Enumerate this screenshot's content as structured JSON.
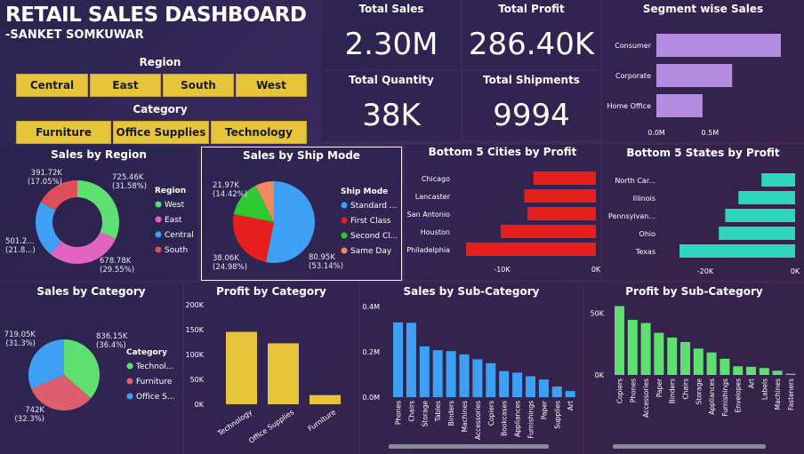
{
  "header": {
    "title": "RETAIL SALES DASHBOARD",
    "subtitle": "-SANKET SOMKUWAR"
  },
  "filters": {
    "region_label": "Region",
    "region_options": [
      "Central",
      "East",
      "South",
      "West"
    ],
    "category_label": "Category",
    "category_options": [
      "Furniture",
      "Office Supplies",
      "Technology"
    ]
  },
  "kpis": {
    "total_sales": {
      "label": "Total Sales",
      "value": "2.30M"
    },
    "total_profit": {
      "label": "Total Profit",
      "value": "286.40K"
    },
    "total_quantity": {
      "label": "Total Quantity",
      "value": "38K"
    },
    "total_shipments": {
      "label": "Total Shipments",
      "value": "9994"
    }
  },
  "colors": {
    "accent_yellow": "#e6c53a",
    "green": "#5ee070",
    "pink": "#e064c0",
    "blue": "#3ea0f5",
    "red": "#de4e5a",
    "purple": "#b48ce0",
    "cyan": "#2fd6bf",
    "bright_red": "#e61e1e",
    "orange": "#ef8a60"
  },
  "charts": {
    "segment": {
      "title": "Segment wise Sales",
      "type": "bar",
      "categories": [
        "Consumer",
        "Corporate",
        "Home Office"
      ],
      "values": [
        1160000,
        706000,
        430000
      ],
      "ticks": [
        "0.0M",
        "0.5M"
      ]
    },
    "region": {
      "title": "Sales by Region",
      "type": "pie",
      "legend_title": "Region",
      "slices": [
        {
          "name": "West",
          "value": 725.46,
          "label": "725.46K",
          "pct": "(31.58%)"
        },
        {
          "name": "East",
          "value": 678.78,
          "label": "678.78K",
          "pct": "(29.55%)"
        },
        {
          "name": "Central",
          "value": 501.24,
          "label": "501.2...",
          "pct": "(21.8...)"
        },
        {
          "name": "South",
          "value": 391.72,
          "label": "391.72K",
          "pct": "(17.05%)"
        }
      ]
    },
    "shipmode": {
      "title": "Sales by Ship Mode",
      "type": "pie",
      "legend_title": "Ship Mode",
      "slices": [
        {
          "name": "Standard ...",
          "value": 53.14,
          "label": "80.95K",
          "pct": "(53.14%)"
        },
        {
          "name": "First Class",
          "value": 24.98,
          "label": "38.06K",
          "pct": "(24.98%)"
        },
        {
          "name": "Second Cl...",
          "value": 14.42,
          "label": "21.97K",
          "pct": "(14.42%)"
        },
        {
          "name": "Same Day",
          "value": 7.46,
          "label": "",
          "pct": ""
        }
      ]
    },
    "cities": {
      "title": "Bottom 5 Cities by Profit",
      "type": "bar",
      "categories": [
        "Chicago",
        "Lancaster",
        "San Antonio",
        "Houston",
        "Philadelphia"
      ],
      "values": [
        -6654,
        -7633,
        -7299,
        -10153,
        -13837
      ],
      "ticks": [
        "-10K",
        "0K"
      ]
    },
    "states": {
      "title": "Bottom 5 States by Profit",
      "type": "bar",
      "categories": [
        "North Car...",
        "Illinois",
        "Pennsylvan...",
        "Ohio",
        "Texas"
      ],
      "values": [
        -7491,
        -12607,
        -15560,
        -16971,
        -25729
      ],
      "ticks": [
        "-20K",
        "0K"
      ]
    },
    "category_pie": {
      "title": "Sales by Category",
      "type": "pie",
      "legend_title": "Category",
      "slices": [
        {
          "name": "Technol...",
          "value": 836.15,
          "label": "836.15K",
          "pct": "(36.4%)"
        },
        {
          "name": "Furniture",
          "value": 742.0,
          "label": "742K",
          "pct": "(32.3%)"
        },
        {
          "name": "Office S...",
          "value": 719.05,
          "label": "719.05K",
          "pct": "(31.3%)"
        }
      ]
    },
    "profit_category": {
      "title": "Profit by Category",
      "type": "bar",
      "categories": [
        "Technology",
        "Office Supplies",
        "Furniture"
      ],
      "values": [
        145455,
        122491,
        18451
      ],
      "ticks": [
        "0K",
        "50K",
        "100K",
        "150K",
        "200K"
      ]
    },
    "sales_subcat": {
      "title": "Sales by Sub-Category",
      "type": "bar",
      "categories": [
        "Phones",
        "Chairs",
        "Storage",
        "Tables",
        "Binders",
        "Machines",
        "Accessories",
        "Copiers",
        "Bookcases",
        "Appliances",
        "Furnishings",
        "Paper",
        "Supplies",
        "Art"
      ],
      "values": [
        330000,
        328000,
        224000,
        207000,
        203000,
        189000,
        167000,
        150000,
        115000,
        108000,
        92000,
        78000,
        47000,
        27000
      ],
      "ticks": [
        "0.0M",
        "0.2M",
        "0.4M"
      ]
    },
    "profit_subcat": {
      "title": "Profit by Sub-Category",
      "type": "bar",
      "categories": [
        "Copiers",
        "Phones",
        "Accessories",
        "Paper",
        "Binders",
        "Chairs",
        "Storage",
        "Appliances",
        "Furnishings",
        "Envelopes",
        "Art",
        "Labels",
        "Machines",
        "Fasteners"
      ],
      "values": [
        55618,
        44516,
        41937,
        34054,
        30222,
        26590,
        21279,
        18138,
        13059,
        6964,
        6528,
        5546,
        3385,
        950
      ],
      "ticks": [
        "0K",
        "50K"
      ]
    }
  }
}
